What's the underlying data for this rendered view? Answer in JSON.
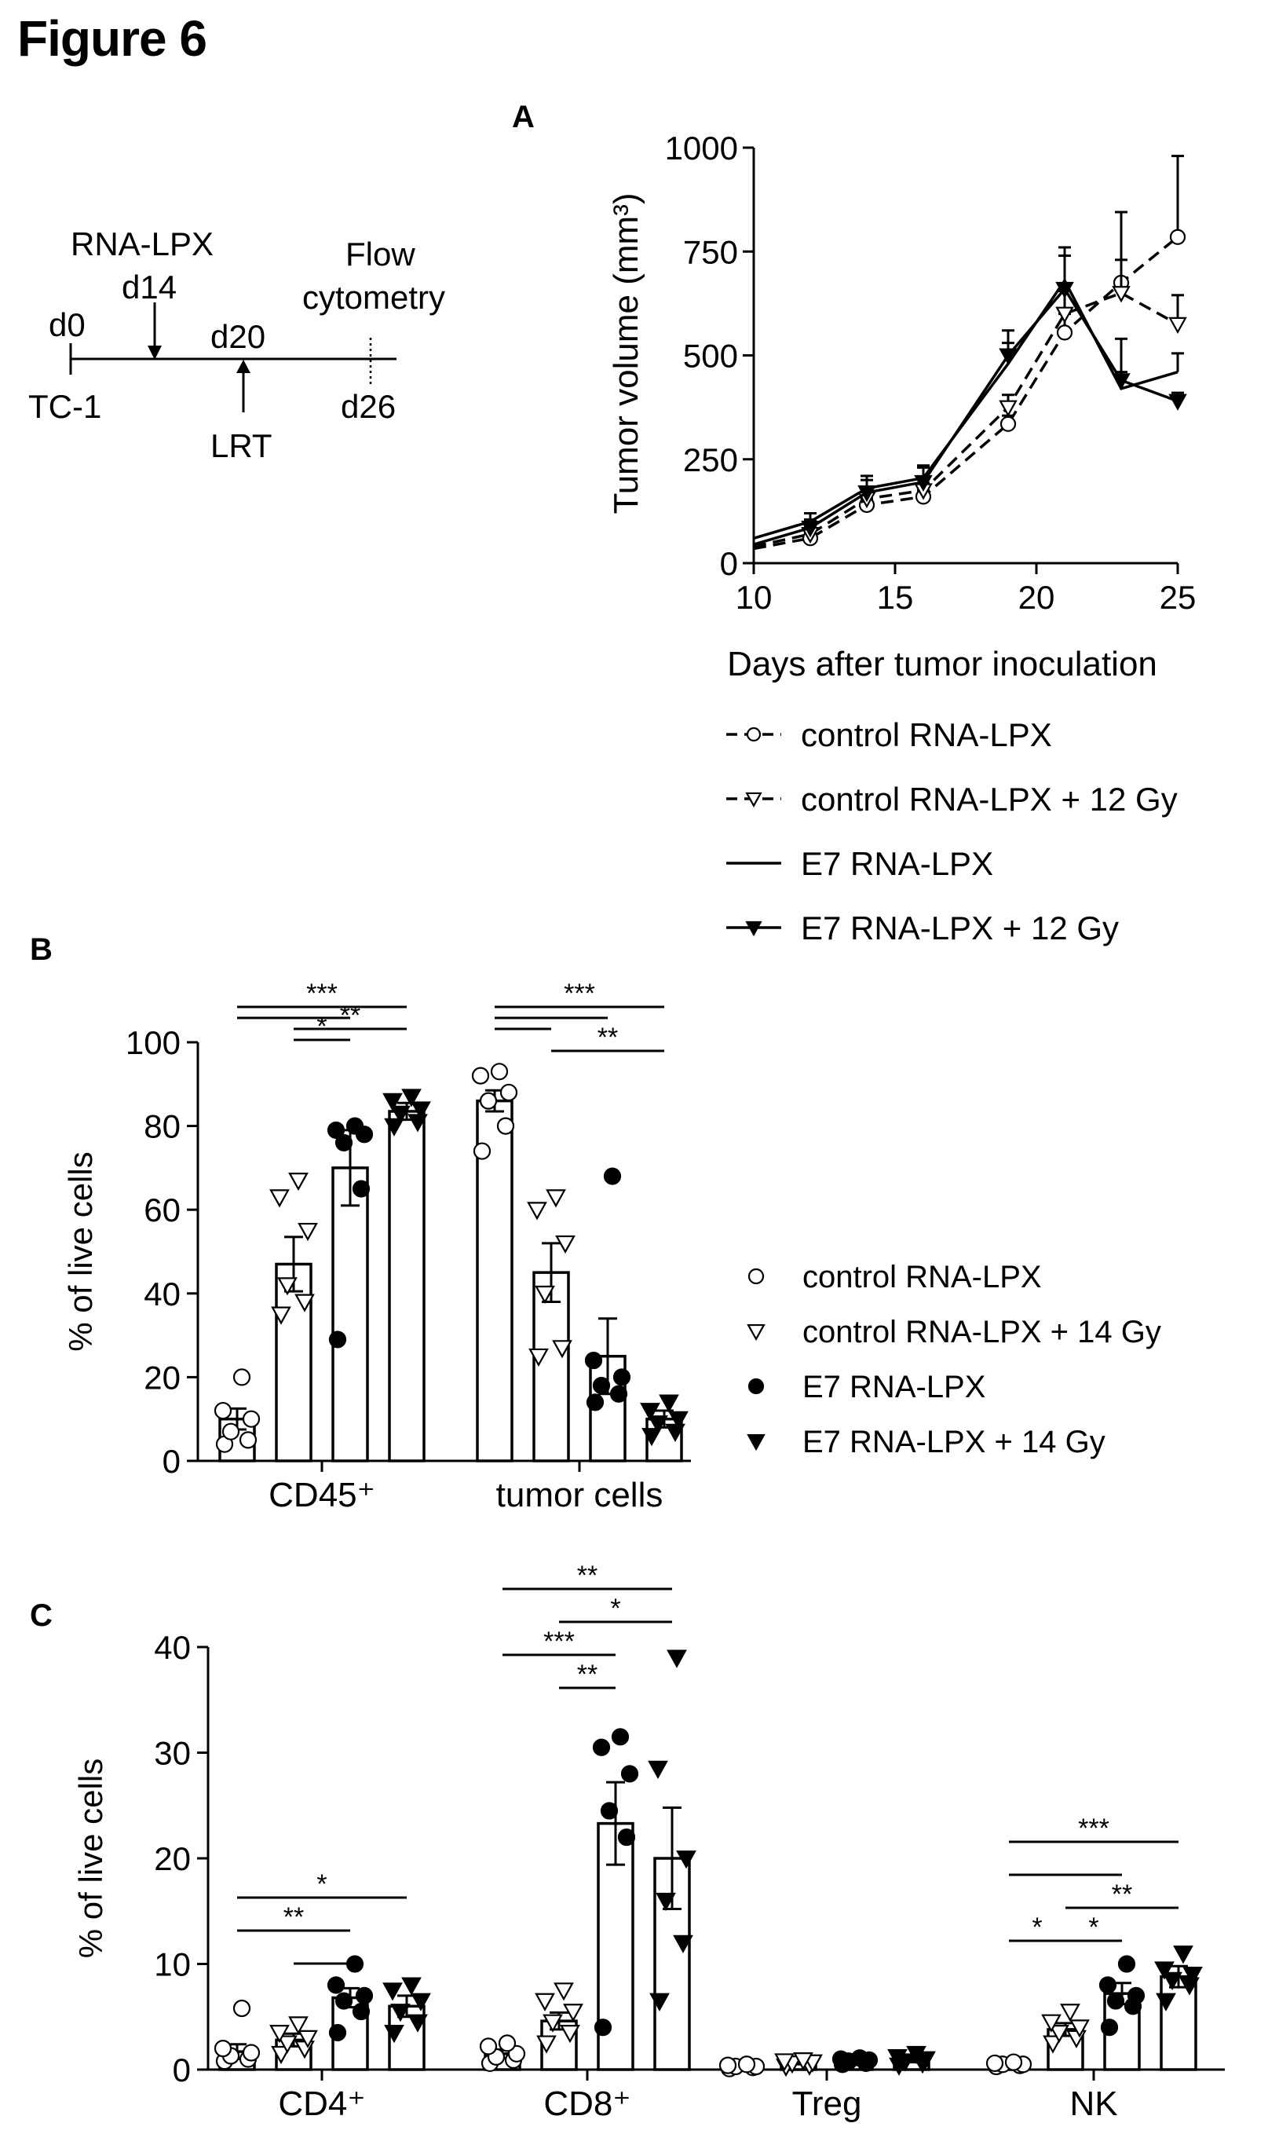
{
  "figure_title": "Figure 6",
  "timeline": {
    "labels": {
      "rna_lpx": "RNA-LPX",
      "d14": "d14",
      "flow_line1": "Flow",
      "flow_line2": "cytometry",
      "d0": "d0",
      "d20": "d20",
      "tc1": "TC-1",
      "d26": "d26",
      "lrt": "LRT"
    }
  },
  "panel_labels": {
    "a": "A",
    "b": "B",
    "c": "C"
  },
  "chart_data": [
    {
      "panel": "A",
      "type": "line",
      "xlabel": "Days after tumor inoculation",
      "ylabel": "Tumor volume (mm³)",
      "xlim": [
        10,
        25
      ],
      "ylim": [
        0,
        1000
      ],
      "xticks": [
        10,
        15,
        20,
        25
      ],
      "yticks": [
        0,
        250,
        500,
        750,
        1000
      ],
      "x": [
        10,
        12,
        14,
        16,
        19,
        21,
        23,
        25
      ],
      "series": [
        {
          "name": "control RNA-LPX",
          "style": "dashed-open-circle",
          "values": [
            35,
            60,
            140,
            160,
            335,
            555,
            675,
            785
          ],
          "errors": [
            0,
            12,
            15,
            15,
            20,
            45,
            170,
            195
          ]
        },
        {
          "name": "control RNA-LPX + 12 Gy",
          "style": "dashed-open-triangle",
          "values": [
            40,
            70,
            155,
            175,
            375,
            600,
            650,
            575
          ],
          "errors": [
            0,
            15,
            18,
            18,
            30,
            55,
            80,
            70
          ]
        },
        {
          "name": "E7 RNA-LPX",
          "style": "solid",
          "values": [
            60,
            100,
            180,
            205,
            480,
            680,
            420,
            460
          ],
          "errors": [
            0,
            20,
            30,
            30,
            50,
            80,
            40,
            45
          ]
        },
        {
          "name": "E7 RNA-LPX + 12 Gy",
          "style": "solid-filled-triangle",
          "values": [
            45,
            85,
            170,
            195,
            500,
            660,
            440,
            390
          ],
          "errors": [
            0,
            20,
            30,
            35,
            60,
            80,
            100,
            20
          ]
        }
      ]
    },
    {
      "panel": "B",
      "type": "bar",
      "ylabel": "% of live cells",
      "ylim": [
        0,
        100
      ],
      "yticks": [
        0,
        20,
        40,
        60,
        80,
        100
      ],
      "categories": [
        "CD45⁺",
        "tumor cells"
      ],
      "series": [
        {
          "name": "control RNA-LPX",
          "marker": "open-circle",
          "values": [
            10,
            86
          ],
          "errors": [
            2.5,
            2.5
          ],
          "points": [
            [
              4,
              5,
              7,
              10,
              12,
              20
            ],
            [
              74,
              80,
              86,
              88,
              92,
              93
            ]
          ]
        },
        {
          "name": "control RNA-LPX + 14 Gy",
          "marker": "open-triangle",
          "values": [
            47,
            45
          ],
          "errors": [
            6.5,
            7
          ],
          "points": [
            [
              35,
              38,
              42,
              55,
              63,
              67
            ],
            [
              25,
              27,
              40,
              52,
              60,
              63
            ]
          ]
        },
        {
          "name": "E7 RNA-LPX",
          "marker": "filled-circle",
          "values": [
            70,
            25
          ],
          "errors": [
            9,
            9
          ],
          "points": [
            [
              29,
              65,
              76,
              78,
              79,
              80
            ],
            [
              14,
              16,
              18,
              20,
              24,
              68
            ]
          ]
        },
        {
          "name": "E7 RNA-LPX + 14 Gy",
          "marker": "filled-triangle",
          "values": [
            83.5,
            10
          ],
          "errors": [
            2,
            2
          ],
          "points": [
            [
              80,
              81,
              83,
              84,
              86,
              87
            ],
            [
              6,
              7,
              9,
              10,
              12,
              14
            ]
          ]
        }
      ],
      "significance": [
        {
          "label": "***",
          "category": 0,
          "from": 0,
          "to": 3,
          "level": 0
        },
        {
          "label": "",
          "category": 0,
          "from": 0,
          "to": 2,
          "level": 1
        },
        {
          "label": "**",
          "category": 0,
          "from": 1,
          "to": 3,
          "level": 2
        },
        {
          "label": "*",
          "category": 0,
          "from": 1,
          "to": 2,
          "level": 3
        },
        {
          "label": "***",
          "category": 1,
          "from": 0,
          "to": 3,
          "level": 0
        },
        {
          "label": "",
          "category": 1,
          "from": 0,
          "to": 2,
          "level": 1
        },
        {
          "label": "",
          "category": 1,
          "from": 0,
          "to": 1,
          "level": 2
        },
        {
          "label": "**",
          "category": 1,
          "from": 1,
          "to": 3,
          "level": 4
        }
      ]
    },
    {
      "panel": "C",
      "type": "bar",
      "ylabel": "% of live cells",
      "ylim": [
        0,
        40
      ],
      "yticks": [
        0,
        10,
        20,
        30,
        40
      ],
      "categories": [
        "CD4⁺",
        "CD8⁺",
        "Treg",
        "NK"
      ],
      "series": [
        {
          "name": "control RNA-LPX",
          "marker": "open-circle",
          "values": [
            1.7,
            1.5,
            0.3,
            0.5
          ],
          "points": [
            [
              0.8,
              1.0,
              1.3,
              1.6,
              2.0,
              5.8
            ],
            [
              0.6,
              0.9,
              1.2,
              1.5,
              2.2,
              2.5
            ],
            [
              0.1,
              0.2,
              0.3,
              0.3,
              0.4,
              0.5
            ],
            [
              0.3,
              0.4,
              0.5,
              0.5,
              0.6,
              0.7
            ]
          ],
          "errors": [
            0.7,
            0.4,
            0.1,
            0.1
          ]
        },
        {
          "name": "control RNA-LPX + 14 Gy",
          "marker": "open-triangle",
          "values": [
            2.8,
            4.6,
            0.6,
            3.8
          ],
          "points": [
            [
              1.5,
              2.0,
              2.5,
              3.0,
              3.5,
              4.3
            ],
            [
              2.5,
              3.5,
              4.5,
              5.5,
              6.5,
              7.5
            ],
            [
              0.3,
              0.4,
              0.6,
              0.7,
              0.8,
              0.9
            ],
            [
              2.5,
              3.0,
              3.5,
              4.0,
              4.5,
              5.5
            ]
          ],
          "errors": [
            0.6,
            0.8,
            0.1,
            0.6
          ]
        },
        {
          "name": "E7 RNA-LPX",
          "marker": "filled-circle",
          "values": [
            6.8,
            23.3,
            0.8,
            7.2
          ],
          "points": [
            [
              3.5,
              5.5,
              6.5,
              7.0,
              8.0,
              10.0
            ],
            [
              4.0,
              22.0,
              24.5,
              28.0,
              30.5,
              31.5
            ],
            [
              0.5,
              0.6,
              0.8,
              0.9,
              1.0,
              1.1
            ],
            [
              4.0,
              6.0,
              6.5,
              7.0,
              8.0,
              10.0
            ]
          ],
          "errors": [
            0.9,
            3.9,
            0.1,
            1.0
          ]
        },
        {
          "name": "E7 RNA-LPX + 14 Gy",
          "marker": "filled-triangle",
          "values": [
            6.0,
            20.0,
            0.9,
            8.8
          ],
          "points": [
            [
              3.5,
              4.5,
              5.5,
              6.5,
              7.5,
              8.0
            ],
            [
              6.5,
              12.0,
              16.0,
              20.0,
              28.5,
              39.0
            ],
            [
              0.4,
              0.6,
              0.8,
              1.0,
              1.2,
              1.5
            ],
            [
              6.5,
              8.0,
              8.5,
              9.0,
              9.5,
              11.0
            ]
          ],
          "errors": [
            1.0,
            4.8,
            0.2,
            1.0
          ]
        }
      ],
      "significance": [
        {
          "label": "*",
          "category": 0,
          "from": 0,
          "to": 3,
          "level": 0
        },
        {
          "label": "**",
          "category": 0,
          "from": 0,
          "to": 2,
          "level": 1
        },
        {
          "label": "",
          "category": 0,
          "from": 1,
          "to": 2,
          "level": 2
        },
        {
          "label": "**",
          "category": 1,
          "from": 0,
          "to": 3,
          "level": 0
        },
        {
          "label": "*",
          "category": 1,
          "from": 1,
          "to": 3,
          "level": 1
        },
        {
          "label": "***",
          "category": 1,
          "from": 0,
          "to": 2,
          "level": 2
        },
        {
          "label": "**",
          "category": 1,
          "from": 1,
          "to": 2,
          "level": 3
        },
        {
          "label": "***",
          "category": 3,
          "from": 0,
          "to": 3,
          "level": 0
        },
        {
          "label": "",
          "category": 3,
          "from": 0,
          "to": 2,
          "level": 1
        },
        {
          "label": "**",
          "category": 3,
          "from": 1,
          "to": 3,
          "level": 2
        },
        {
          "label": "*",
          "category": 3,
          "from": 0,
          "to": 1,
          "level": 3
        },
        {
          "label": "*",
          "category": 3,
          "from": 1,
          "to": 2,
          "level": 3
        }
      ]
    }
  ]
}
